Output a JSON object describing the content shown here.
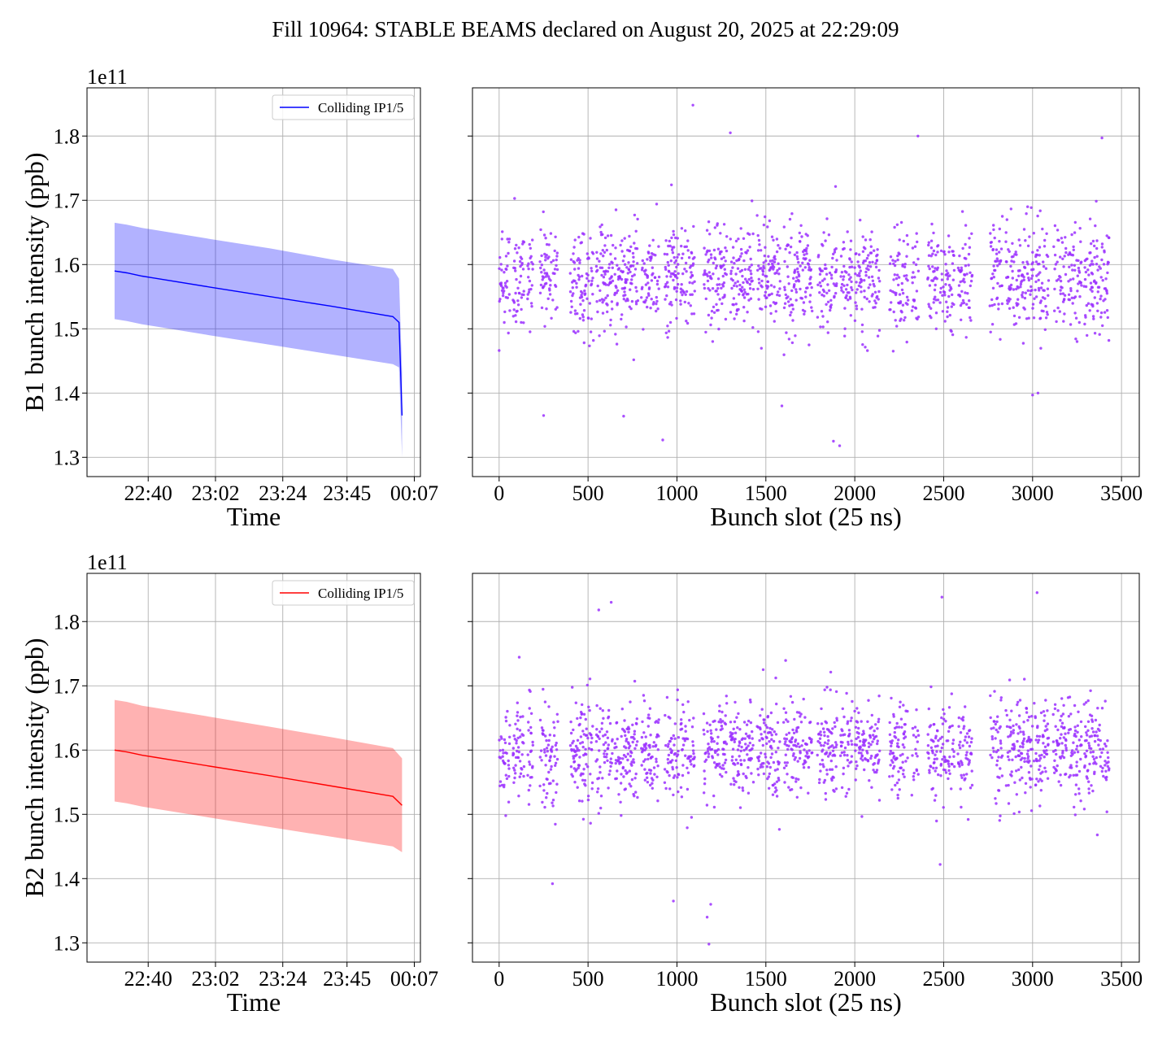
{
  "figure": {
    "title": "Fill 10964: STABLE BEAMS declared on August 20, 2025 at 22:29:09"
  },
  "chart_data": [
    {
      "id": "b1-time",
      "type": "line",
      "title": "",
      "xlabel": "Time",
      "ylabel": "B1 bunch intensity (ppb)",
      "y_multiplier": "1e11",
      "xlim": [
        "22:20",
        "00:09"
      ],
      "ylim": [
        1.27,
        1.875
      ],
      "xticks": [
        "22:40",
        "23:02",
        "23:24",
        "23:45",
        "00:07"
      ],
      "yticks": [
        1.3,
        1.4,
        1.5,
        1.6,
        1.7,
        1.8
      ],
      "grid": true,
      "legend": {
        "entries": [
          "Colliding IP1/5"
        ],
        "placement": "upper right"
      },
      "colors": {
        "line": "#0000ff",
        "band": "#0000ff",
        "band_opacity": 0.3
      },
      "series": [
        {
          "name": "Colliding IP1/5",
          "x": [
            "22:29",
            "22:33",
            "22:38",
            "22:42",
            "23:00",
            "23:20",
            "23:40",
            "24:00",
            "24:02",
            "24:03"
          ],
          "mean": [
            1.59,
            1.587,
            1.582,
            1.579,
            1.565,
            1.55,
            1.535,
            1.519,
            1.51,
            1.365
          ],
          "upper": [
            1.665,
            1.662,
            1.657,
            1.654,
            1.64,
            1.625,
            1.608,
            1.593,
            1.578,
            1.432
          ],
          "lower": [
            1.515,
            1.512,
            1.507,
            1.504,
            1.49,
            1.475,
            1.46,
            1.445,
            1.44,
            1.3
          ]
        }
      ]
    },
    {
      "id": "b1-slots",
      "type": "scatter",
      "title": "",
      "xlabel": "Bunch slot (25 ns)",
      "ylabel": "",
      "xlim": [
        -150,
        3600
      ],
      "ylim": [
        1.27,
        1.875
      ],
      "xticks": [
        0,
        500,
        1000,
        1500,
        2000,
        2500,
        3000,
        3500
      ],
      "grid": true,
      "colors": {
        "points": "#9b30ff"
      },
      "points_description": "about 2400 colliding bunches spread over slots 0 to 3420, intensities mostly 1.45e11 to 1.75e11",
      "trains": [
        [
          0,
          60
        ],
        [
          78,
          140
        ],
        [
          160,
          190
        ],
        [
          230,
          330
        ],
        [
          400,
          530
        ],
        [
          545,
          640
        ],
        [
          650,
          780
        ],
        [
          800,
          900
        ],
        [
          930,
          1010
        ],
        [
          1020,
          1100
        ],
        [
          1150,
          1280
        ],
        [
          1300,
          1430
        ],
        [
          1450,
          1580
        ],
        [
          1600,
          1760
        ],
        [
          1790,
          1900
        ],
        [
          1920,
          1985
        ],
        [
          2000,
          2140
        ],
        [
          2195,
          2300
        ],
        [
          2320,
          2360
        ],
        [
          2410,
          2470
        ],
        [
          2480,
          2560
        ],
        [
          2580,
          2660
        ],
        [
          2760,
          2830
        ],
        [
          2850,
          2900
        ],
        [
          2905,
          3010
        ],
        [
          3015,
          3090
        ],
        [
          3115,
          3190
        ],
        [
          3200,
          3275
        ],
        [
          3290,
          3430
        ]
      ],
      "density": 0.66,
      "mean": 1.58,
      "spread": 0.075,
      "outliers": [
        [
          1090,
          1.848
        ],
        [
          1300,
          1.805
        ],
        [
          2355,
          1.8
        ],
        [
          3390,
          1.797
        ],
        [
          1880,
          1.325
        ],
        [
          1915,
          1.318
        ],
        [
          920,
          1.327
        ],
        [
          1590,
          1.38
        ],
        [
          250,
          1.365
        ],
        [
          700,
          1.364
        ],
        [
          3000,
          1.397
        ],
        [
          3030,
          1.4
        ]
      ]
    },
    {
      "id": "b2-time",
      "type": "line",
      "title": "",
      "xlabel": "Time",
      "ylabel": "B2 bunch intensity (ppb)",
      "y_multiplier": "1e11",
      "xlim": [
        "22:20",
        "00:09"
      ],
      "ylim": [
        1.27,
        1.875
      ],
      "xticks": [
        "22:40",
        "23:02",
        "23:24",
        "23:45",
        "00:07"
      ],
      "yticks": [
        1.3,
        1.4,
        1.5,
        1.6,
        1.7,
        1.8
      ],
      "grid": true,
      "legend": {
        "entries": [
          "Colliding IP1/5"
        ],
        "placement": "upper right"
      },
      "colors": {
        "line": "#ff0000",
        "band": "#ff0000",
        "band_opacity": 0.3
      },
      "series": [
        {
          "name": "Colliding IP1/5",
          "x": [
            "22:29",
            "22:33",
            "22:38",
            "22:42",
            "23:00",
            "23:20",
            "23:40",
            "24:00",
            "24:03"
          ],
          "mean": [
            1.6,
            1.597,
            1.592,
            1.589,
            1.575,
            1.56,
            1.544,
            1.528,
            1.514
          ],
          "upper": [
            1.678,
            1.675,
            1.669,
            1.666,
            1.652,
            1.636,
            1.62,
            1.603,
            1.587
          ],
          "lower": [
            1.52,
            1.517,
            1.512,
            1.509,
            1.495,
            1.48,
            1.465,
            1.45,
            1.441
          ]
        }
      ]
    },
    {
      "id": "b2-slots",
      "type": "scatter",
      "title": "",
      "xlabel": "Bunch slot (25 ns)",
      "ylabel": "",
      "xlim": [
        -150,
        3600
      ],
      "ylim": [
        1.27,
        1.875
      ],
      "xticks": [
        0,
        500,
        1000,
        1500,
        2000,
        2500,
        3000,
        3500
      ],
      "grid": true,
      "colors": {
        "points": "#9b30ff"
      },
      "points_description": "about 2400 colliding bunches spread over slots 0 to 3420, intensities mostly 1.48e11 to 1.72e11",
      "trains": [
        [
          0,
          60
        ],
        [
          78,
          140
        ],
        [
          160,
          190
        ],
        [
          230,
          330
        ],
        [
          400,
          530
        ],
        [
          545,
          640
        ],
        [
          650,
          780
        ],
        [
          800,
          900
        ],
        [
          930,
          1010
        ],
        [
          1020,
          1100
        ],
        [
          1150,
          1280
        ],
        [
          1300,
          1430
        ],
        [
          1450,
          1580
        ],
        [
          1600,
          1760
        ],
        [
          1790,
          1900
        ],
        [
          1920,
          1985
        ],
        [
          2000,
          2140
        ],
        [
          2195,
          2300
        ],
        [
          2320,
          2360
        ],
        [
          2410,
          2470
        ],
        [
          2480,
          2560
        ],
        [
          2580,
          2660
        ],
        [
          2760,
          2830
        ],
        [
          2850,
          2900
        ],
        [
          2905,
          3010
        ],
        [
          3015,
          3090
        ],
        [
          3115,
          3190
        ],
        [
          3200,
          3275
        ],
        [
          3290,
          3430
        ]
      ],
      "density": 0.66,
      "mean": 1.6,
      "spread": 0.07,
      "outliers": [
        [
          2490,
          1.838
        ],
        [
          3025,
          1.845
        ],
        [
          560,
          1.818
        ],
        [
          630,
          1.83
        ],
        [
          1180,
          1.298
        ],
        [
          1170,
          1.34
        ],
        [
          1190,
          1.36
        ],
        [
          980,
          1.365
        ],
        [
          2480,
          1.422
        ],
        [
          300,
          1.392
        ]
      ]
    }
  ]
}
